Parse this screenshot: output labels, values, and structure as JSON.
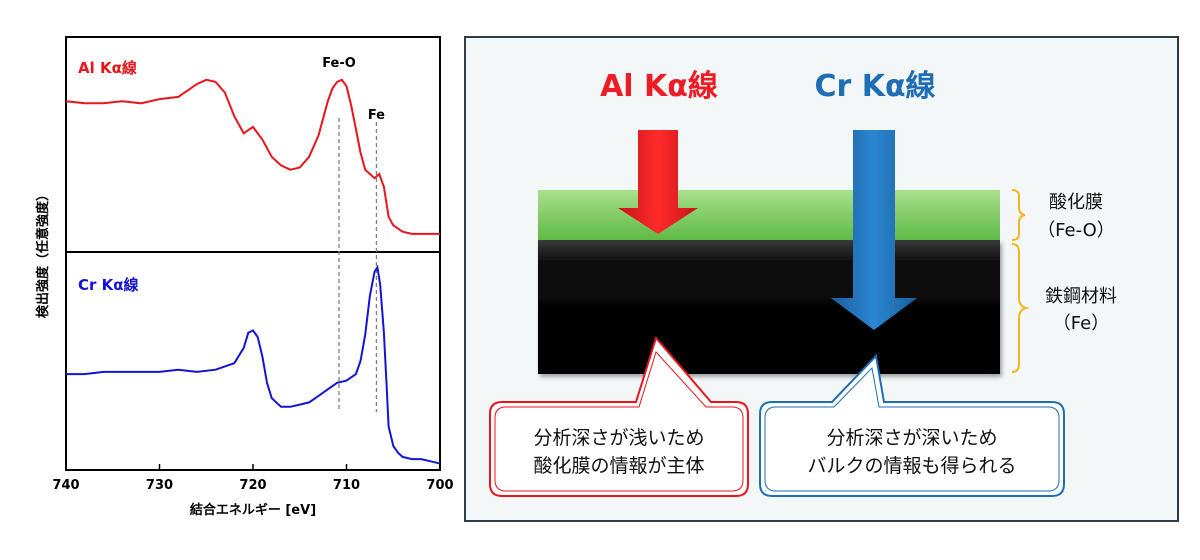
{
  "chart_data": [
    {
      "type": "line",
      "title": "Al Kα線",
      "xlabel": "結合エネルギー [eV]",
      "ylabel": "検出強度（任意強度）",
      "xlim": [
        740,
        700
      ],
      "xticks": [
        740,
        730,
        720,
        710,
        700
      ],
      "ylim": [
        0,
        1
      ],
      "color": "#e8151b",
      "annotations": [
        {
          "label": "Fe-O",
          "x": 710.8
        },
        {
          "label": "Fe",
          "x": 706.8
        }
      ],
      "series": [
        {
          "x": [
            740,
            738,
            736,
            734,
            732,
            730,
            728,
            726,
            725,
            724,
            723,
            722,
            721,
            720,
            719,
            718,
            717,
            716,
            715,
            714,
            713,
            712,
            711.5,
            711,
            710.5,
            710,
            709.5,
            709,
            708.5,
            708,
            707.5,
            707,
            706.5,
            706,
            705.5,
            705,
            704,
            703,
            702,
            701,
            700
          ],
          "y": [
            0.7,
            0.69,
            0.69,
            0.7,
            0.69,
            0.71,
            0.72,
            0.78,
            0.8,
            0.79,
            0.74,
            0.63,
            0.55,
            0.58,
            0.52,
            0.44,
            0.4,
            0.38,
            0.39,
            0.44,
            0.54,
            0.7,
            0.76,
            0.79,
            0.8,
            0.77,
            0.68,
            0.57,
            0.46,
            0.38,
            0.36,
            0.34,
            0.36,
            0.3,
            0.16,
            0.12,
            0.09,
            0.08,
            0.08,
            0.08,
            0.08
          ]
        }
      ]
    },
    {
      "type": "line",
      "title": "Cr Kα線",
      "xlabel": "結合エネルギー [eV]",
      "ylabel": "検出強度（任意強度）",
      "xlim": [
        740,
        700
      ],
      "xticks": [
        740,
        730,
        720,
        710,
        700
      ],
      "ylim": [
        0,
        1
      ],
      "color": "#1414d2",
      "series": [
        {
          "x": [
            740,
            738,
            736,
            734,
            732,
            730,
            728,
            726,
            724,
            722,
            721,
            720.5,
            720,
            719.5,
            719,
            718.5,
            718,
            717,
            716,
            715,
            714,
            713,
            712,
            711,
            710,
            709,
            708.5,
            708,
            707.5,
            707,
            706.7,
            706.4,
            706,
            705.7,
            705.5,
            705,
            704.5,
            704,
            703,
            702,
            701,
            700
          ],
          "y": [
            0.44,
            0.44,
            0.45,
            0.45,
            0.45,
            0.45,
            0.46,
            0.45,
            0.46,
            0.49,
            0.56,
            0.63,
            0.64,
            0.61,
            0.52,
            0.4,
            0.33,
            0.29,
            0.29,
            0.3,
            0.31,
            0.34,
            0.37,
            0.4,
            0.41,
            0.44,
            0.5,
            0.62,
            0.8,
            0.91,
            0.93,
            0.85,
            0.63,
            0.38,
            0.2,
            0.11,
            0.08,
            0.06,
            0.05,
            0.05,
            0.04,
            0.03
          ]
        }
      ]
    }
  ],
  "diagram": {
    "al_label": "Al Kα線",
    "cr_label": "Cr Kα線",
    "al_color": "#ee1c24",
    "cr_color": "#1f6eb5",
    "oxide_label_1": "酸化膜",
    "oxide_label_2": "（Fe-O）",
    "steel_label_1": "鉄鋼材料",
    "steel_label_2": "（Fe）",
    "brace_color": "#f4b620",
    "bubble_red_line1": "分析深さが浅いため",
    "bubble_red_line2": "酸化膜の情報が主体",
    "bubble_blue_line1": "分析深さが深いため",
    "bubble_blue_line2": "バルクの情報も得られる"
  }
}
